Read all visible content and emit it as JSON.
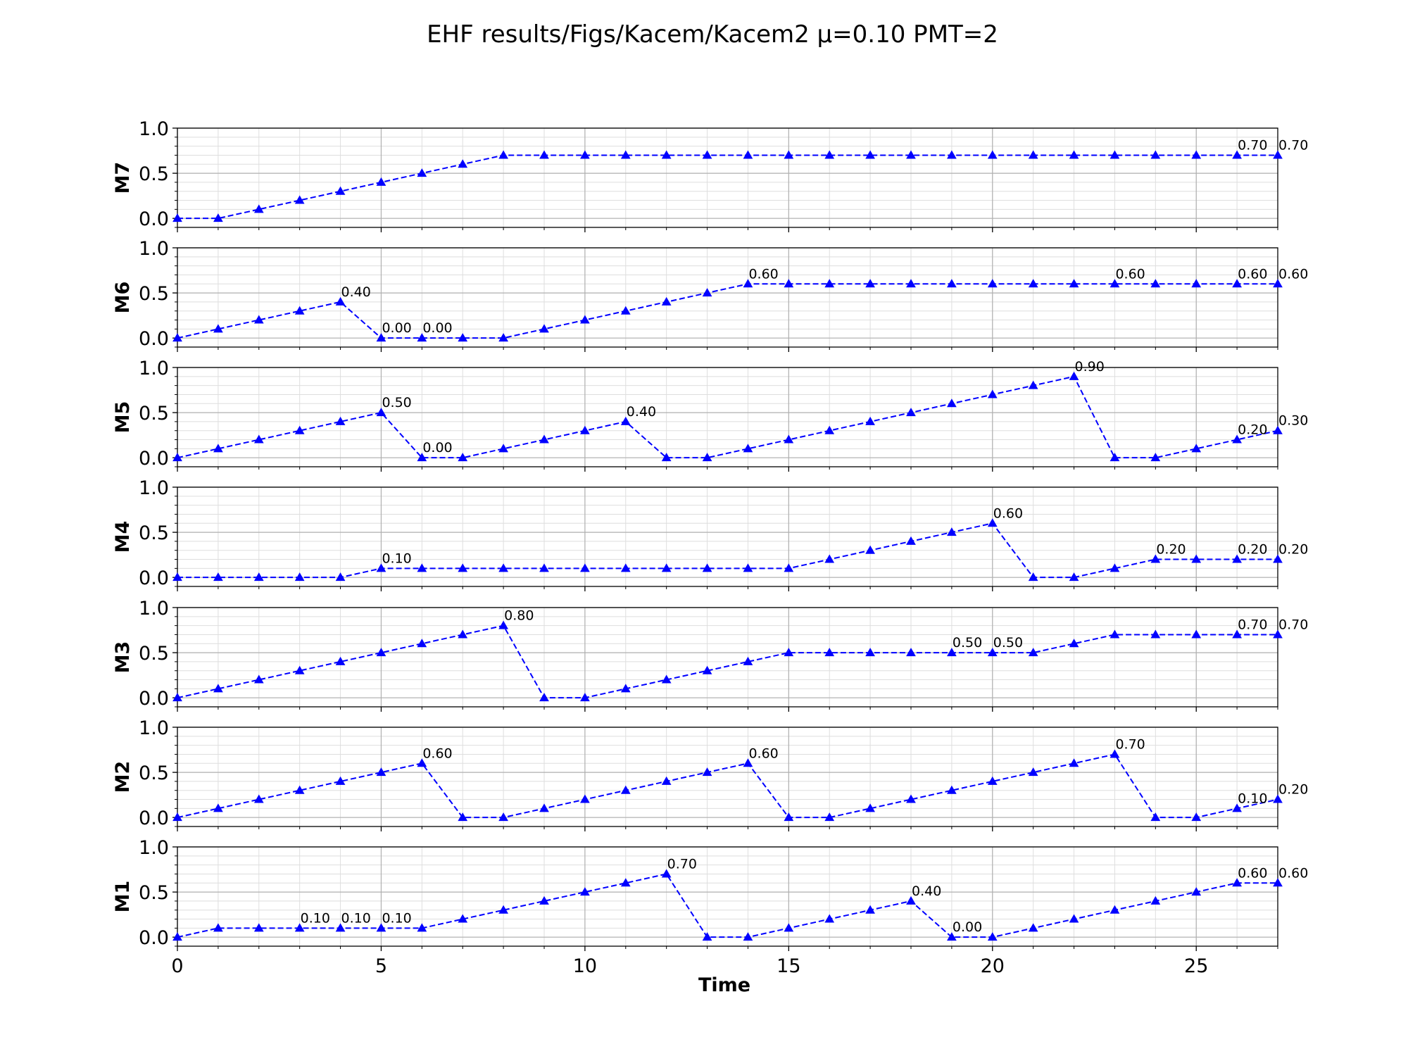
{
  "chart_data": {
    "type": "line",
    "title": "EHF results/Figs/Kacem/Kacem2 μ=0.10 PMT=2",
    "xlabel": "Time",
    "xlim": [
      0,
      27
    ],
    "ylim": [
      -0.1,
      1.0
    ],
    "xticks": [
      0,
      5,
      10,
      15,
      20,
      25
    ],
    "yticks": [
      "0.0",
      "0.5",
      "1.0"
    ],
    "grid": true,
    "line_color": "#0000ff",
    "line_style": "dashed",
    "marker": "triangle-up",
    "x": [
      0,
      1,
      2,
      3,
      4,
      5,
      6,
      7,
      8,
      9,
      10,
      11,
      12,
      13,
      14,
      15,
      16,
      17,
      18,
      19,
      20,
      21,
      22,
      23,
      24,
      25,
      26,
      27
    ],
    "panels": [
      {
        "name": "M7",
        "values": [
          0,
          0,
          0.1,
          0.2,
          0.3,
          0.4,
          0.5,
          0.6,
          0.7,
          0.7,
          0.7,
          0.7,
          0.7,
          0.7,
          0.7,
          0.7,
          0.7,
          0.7,
          0.7,
          0.7,
          0.7,
          0.7,
          0.7,
          0.7,
          0.7,
          0.7,
          0.7,
          0.7
        ],
        "annotations": [
          {
            "x": 26,
            "y": 0.7,
            "text": "0.70"
          },
          {
            "x": 27,
            "y": 0.7,
            "text": "0.70"
          }
        ]
      },
      {
        "name": "M6",
        "values": [
          0,
          0.1,
          0.2,
          0.3,
          0.4,
          0,
          0,
          0,
          0,
          0.1,
          0.2,
          0.3,
          0.4,
          0.5,
          0.6,
          0.6,
          0.6,
          0.6,
          0.6,
          0.6,
          0.6,
          0.6,
          0.6,
          0.6,
          0.6,
          0.6,
          0.6,
          0.6
        ],
        "annotations": [
          {
            "x": 4,
            "y": 0.4,
            "text": "0.40"
          },
          {
            "x": 5,
            "y": 0,
            "text": "0.00"
          },
          {
            "x": 6,
            "y": 0,
            "text": "0.00"
          },
          {
            "x": 14,
            "y": 0.6,
            "text": "0.60"
          },
          {
            "x": 23,
            "y": 0.6,
            "text": "0.60"
          },
          {
            "x": 26,
            "y": 0.6,
            "text": "0.60"
          },
          {
            "x": 27,
            "y": 0.6,
            "text": "0.60"
          }
        ]
      },
      {
        "name": "M5",
        "values": [
          0,
          0.1,
          0.2,
          0.3,
          0.4,
          0.5,
          0,
          0,
          0.1,
          0.2,
          0.3,
          0.4,
          0,
          0,
          0.1,
          0.2,
          0.3,
          0.4,
          0.5,
          0.6,
          0.7,
          0.8,
          0.9,
          0,
          0,
          0.1,
          0.2,
          0.3
        ],
        "annotations": [
          {
            "x": 5,
            "y": 0.5,
            "text": "0.50"
          },
          {
            "x": 6,
            "y": 0,
            "text": "0.00"
          },
          {
            "x": 11,
            "y": 0.4,
            "text": "0.40"
          },
          {
            "x": 22,
            "y": 0.9,
            "text": "0.90"
          },
          {
            "x": 26,
            "y": 0.2,
            "text": "0.20"
          },
          {
            "x": 27,
            "y": 0.3,
            "text": "0.30"
          }
        ]
      },
      {
        "name": "M4",
        "values": [
          0,
          0,
          0,
          0,
          0,
          0.1,
          0.1,
          0.1,
          0.1,
          0.1,
          0.1,
          0.1,
          0.1,
          0.1,
          0.1,
          0.1,
          0.2,
          0.3,
          0.4,
          0.5,
          0.6,
          0,
          0,
          0.1,
          0.2,
          0.2,
          0.2,
          0.2
        ],
        "annotations": [
          {
            "x": 5,
            "y": 0.1,
            "text": "0.10"
          },
          {
            "x": 20,
            "y": 0.6,
            "text": "0.60"
          },
          {
            "x": 24,
            "y": 0.2,
            "text": "0.20"
          },
          {
            "x": 26,
            "y": 0.2,
            "text": "0.20"
          },
          {
            "x": 27,
            "y": 0.2,
            "text": "0.20"
          }
        ]
      },
      {
        "name": "M3",
        "values": [
          0,
          0.1,
          0.2,
          0.3,
          0.4,
          0.5,
          0.6,
          0.7,
          0.8,
          0,
          0,
          0.1,
          0.2,
          0.3,
          0.4,
          0.5,
          0.5,
          0.5,
          0.5,
          0.5,
          0.5,
          0.5,
          0.6,
          0.7,
          0.7,
          0.7,
          0.7,
          0.7
        ],
        "annotations": [
          {
            "x": 8,
            "y": 0.8,
            "text": "0.80"
          },
          {
            "x": 19,
            "y": 0.5,
            "text": "0.50"
          },
          {
            "x": 20,
            "y": 0.5,
            "text": "0.50"
          },
          {
            "x": 26,
            "y": 0.7,
            "text": "0.70"
          },
          {
            "x": 27,
            "y": 0.7,
            "text": "0.70"
          }
        ]
      },
      {
        "name": "M2",
        "values": [
          0,
          0.1,
          0.2,
          0.3,
          0.4,
          0.5,
          0.6,
          0,
          0,
          0.1,
          0.2,
          0.3,
          0.4,
          0.5,
          0.6,
          0,
          0,
          0.1,
          0.2,
          0.3,
          0.4,
          0.5,
          0.6,
          0.7,
          0,
          0,
          0.1,
          0.2
        ],
        "annotations": [
          {
            "x": 6,
            "y": 0.6,
            "text": "0.60"
          },
          {
            "x": 14,
            "y": 0.6,
            "text": "0.60"
          },
          {
            "x": 23,
            "y": 0.7,
            "text": "0.70"
          },
          {
            "x": 26,
            "y": 0.1,
            "text": "0.10"
          },
          {
            "x": 27,
            "y": 0.2,
            "text": "0.20"
          }
        ]
      },
      {
        "name": "M1",
        "values": [
          0,
          0.1,
          0.1,
          0.1,
          0.1,
          0.1,
          0.1,
          0.2,
          0.3,
          0.4,
          0.5,
          0.6,
          0.7,
          0,
          0,
          0.1,
          0.2,
          0.3,
          0.4,
          0,
          0,
          0.1,
          0.2,
          0.3,
          0.4,
          0.5,
          0.6,
          0.6
        ],
        "annotations": [
          {
            "x": 3,
            "y": 0.1,
            "text": "0.10"
          },
          {
            "x": 4,
            "y": 0.1,
            "text": "0.10"
          },
          {
            "x": 5,
            "y": 0.1,
            "text": "0.10"
          },
          {
            "x": 12,
            "y": 0.7,
            "text": "0.70"
          },
          {
            "x": 18,
            "y": 0.4,
            "text": "0.40"
          },
          {
            "x": 19,
            "y": 0,
            "text": "0.00"
          },
          {
            "x": 26,
            "y": 0.6,
            "text": "0.60"
          },
          {
            "x": 27,
            "y": 0.6,
            "text": "0.60"
          }
        ]
      }
    ]
  }
}
